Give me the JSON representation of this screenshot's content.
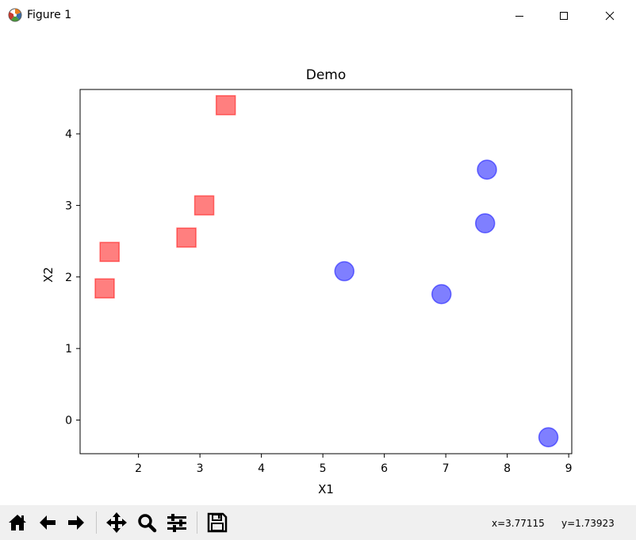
{
  "window": {
    "title": "Figure 1",
    "minimize_icon": "minimize-icon",
    "maximize_icon": "maximize-icon",
    "close_icon": "close-icon"
  },
  "toolbar": {
    "buttons": [
      {
        "icon": "home-icon"
      },
      {
        "icon": "back-arrow-icon"
      },
      {
        "icon": "forward-arrow-icon"
      },
      {
        "icon": "pan-icon"
      },
      {
        "icon": "zoom-icon"
      },
      {
        "icon": "configure-subplots-icon"
      },
      {
        "icon": "save-icon"
      }
    ],
    "coords_x": "x=3.77115",
    "coords_y": "y=1.73923"
  },
  "chart_data": {
    "type": "scatter",
    "title": "Demo",
    "xlabel": "X1",
    "ylabel": "X2",
    "xlim": [
      1.05,
      9.05
    ],
    "ylim": [
      -0.47,
      4.62
    ],
    "xticks": [
      "2",
      "3",
      "4",
      "5",
      "6",
      "7",
      "8",
      "9"
    ],
    "yticks": [
      "0",
      "1",
      "2",
      "3",
      "4"
    ],
    "grid": false,
    "series": [
      {
        "marker": "square",
        "color": "#ff0000",
        "alpha": 0.5,
        "points": [
          [
            1.45,
            1.84
          ],
          [
            1.53,
            2.35
          ],
          [
            2.78,
            2.55
          ],
          [
            3.07,
            3.0
          ],
          [
            3.42,
            4.4
          ]
        ]
      },
      {
        "marker": "circle",
        "color": "#0000ff",
        "alpha": 0.5,
        "points": [
          [
            5.35,
            2.08
          ],
          [
            6.93,
            1.76
          ],
          [
            7.64,
            2.75
          ],
          [
            7.67,
            3.5
          ],
          [
            8.67,
            -0.24
          ]
        ]
      }
    ]
  }
}
